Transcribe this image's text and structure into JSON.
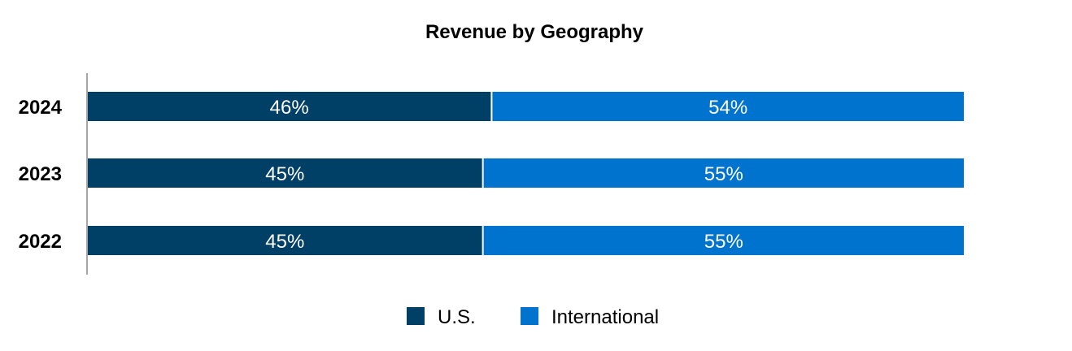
{
  "chart_data": {
    "type": "bar",
    "orientation": "horizontal",
    "stacked": true,
    "title": "Revenue by Geography",
    "xlabel": "",
    "ylabel": "",
    "xlim": [
      0,
      100
    ],
    "grid": false,
    "legend_position": "bottom",
    "categories": [
      "2024",
      "2023",
      "2022"
    ],
    "series": [
      {
        "name": "U.S.",
        "color": "#003f66",
        "values": [
          46,
          45,
          45
        ],
        "labels": [
          "46%",
          "45%",
          "45%"
        ]
      },
      {
        "name": "International",
        "color": "#0073cf",
        "values": [
          54,
          55,
          55
        ],
        "labels": [
          "54%",
          "55%",
          "55%"
        ]
      }
    ]
  }
}
